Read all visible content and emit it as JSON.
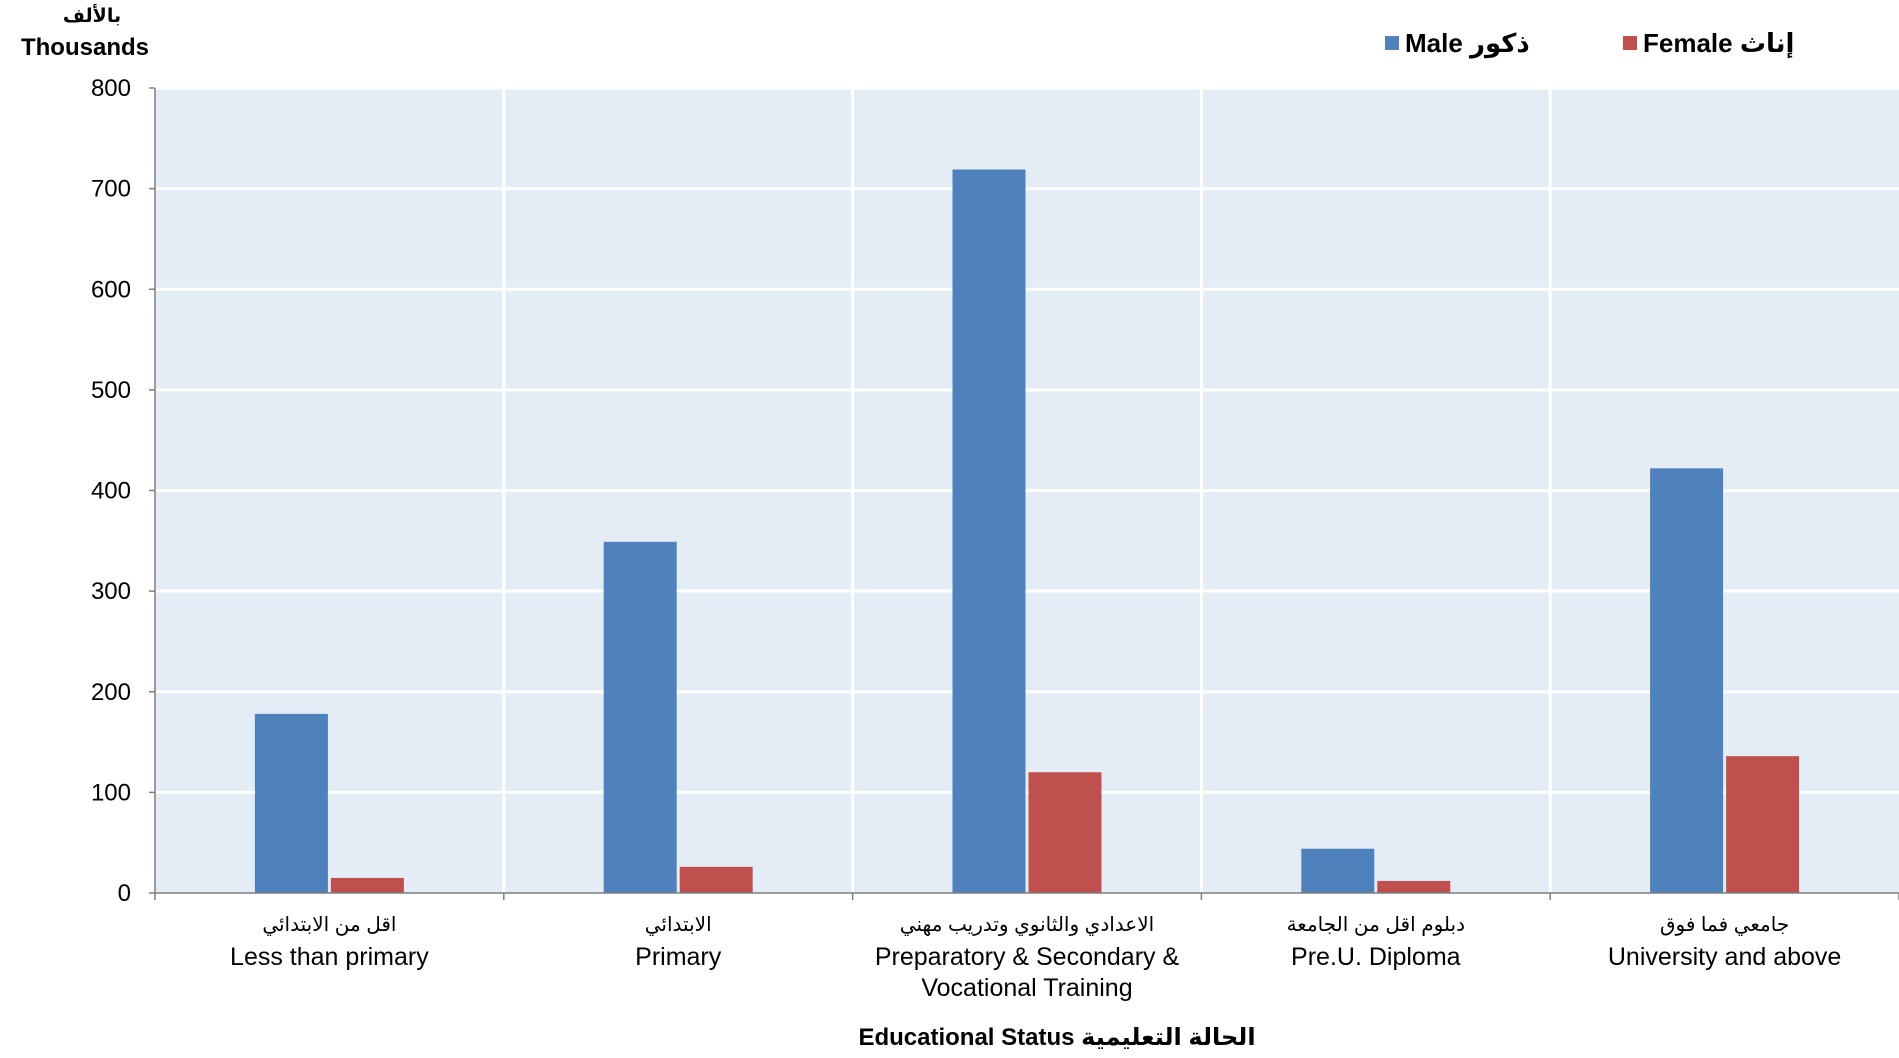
{
  "chart_data": {
    "type": "bar",
    "y_unit_ar": "بالألف",
    "y_unit_en": "Thousands",
    "categories": [
      {
        "ar": "اقل من الابتدائي",
        "en": [
          "Less than primary"
        ]
      },
      {
        "ar": "الابتدائي",
        "en": [
          "Primary"
        ]
      },
      {
        "ar": "الاعدادي والثانوي وتدريب مهني",
        "en": [
          "Preparatory & Secondary &",
          "Vocational Training"
        ]
      },
      {
        "ar": "دبلوم اقل من الجامعة",
        "en": [
          "Pre.U. Diploma"
        ]
      },
      {
        "ar": "جامعي فما فوق",
        "en": [
          "University and above"
        ]
      }
    ],
    "series": [
      {
        "name": "Male ذكور",
        "color": "#4F81BD",
        "values": [
          178,
          349,
          719,
          44,
          422
        ]
      },
      {
        "name": "Female إناث",
        "color": "#C0504D",
        "values": [
          15,
          26,
          120,
          12,
          136
        ]
      }
    ],
    "ylim": [
      0,
      800
    ],
    "yticks": [
      0,
      100,
      200,
      300,
      400,
      500,
      600,
      700,
      800
    ],
    "xlabel": "Educational Status  الحالة التعليمية",
    "grid": true,
    "plot_background": "#E4ECF6",
    "legend_position": "top-right"
  }
}
